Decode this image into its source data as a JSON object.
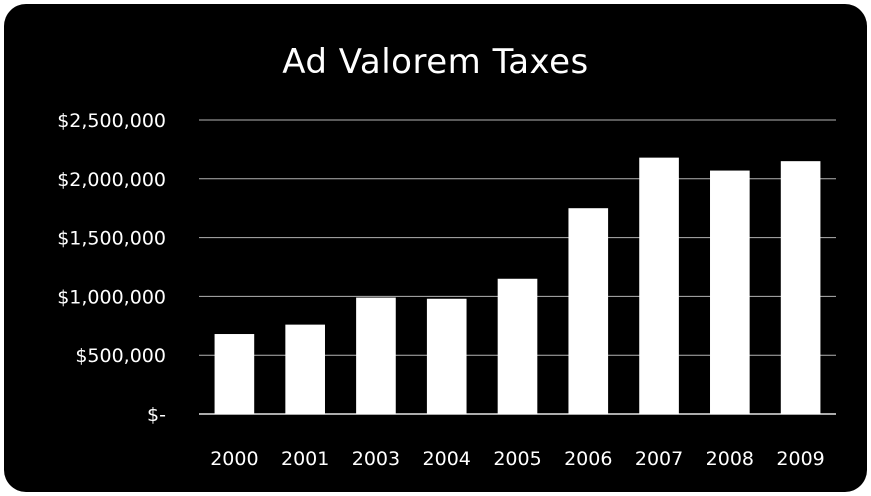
{
  "chart_data": {
    "type": "bar",
    "title": "Ad Valorem Taxes",
    "xlabel": "",
    "ylabel": "",
    "categories": [
      "2000",
      "2001",
      "2003",
      "2004",
      "2005",
      "2006",
      "2007",
      "2008",
      "2009"
    ],
    "values": [
      680000,
      760000,
      990000,
      980000,
      1150000,
      1750000,
      2180000,
      2070000,
      2150000
    ],
    "ylim": [
      0,
      2500000
    ],
    "y_ticks": [
      {
        "value": 0,
        "label": "$-"
      },
      {
        "value": 500000,
        "label": "$500,000"
      },
      {
        "value": 1000000,
        "label": "$1,000,000"
      },
      {
        "value": 1500000,
        "label": "$1,500,000"
      },
      {
        "value": 2000000,
        "label": "$2,000,000"
      },
      {
        "value": 2500000,
        "label": "$2,500,000"
      }
    ],
    "grid": true,
    "legend": "none",
    "colors": {
      "background": "#000000",
      "bar": "#ffffff",
      "gridline": "#ffffff",
      "text": "#ffffff"
    }
  }
}
